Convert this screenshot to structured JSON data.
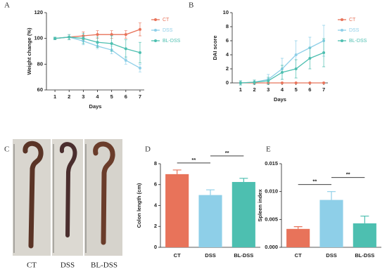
{
  "chart_data": [
    {
      "type": "line",
      "panel": "A",
      "xlabel": "Days",
      "ylabel": "Weight change (%)",
      "x": [
        1,
        2,
        3,
        4,
        5,
        6,
        7
      ],
      "xlim": [
        0.4,
        7.3
      ],
      "xticks": [
        1,
        2,
        3,
        4,
        5,
        6,
        7
      ],
      "ylim": [
        60,
        120
      ],
      "yticks": [
        60,
        80,
        100,
        120
      ],
      "series": [
        {
          "name": "CT",
          "color": "#e8735a",
          "values": [
            100,
            101,
            102,
            103,
            103,
            103,
            107
          ],
          "errors": [
            1,
            2,
            3,
            3,
            3,
            3,
            5
          ]
        },
        {
          "name": "DSS",
          "color": "#8ecfe8",
          "values": [
            100,
            101,
            98,
            94,
            91,
            83,
            77
          ],
          "errors": [
            1,
            2,
            3,
            2,
            3,
            3,
            3
          ]
        },
        {
          "name": "BL-DSS",
          "color": "#4dbfb0",
          "values": [
            100,
            101,
            100,
            97,
            96,
            92,
            89
          ],
          "errors": [
            1,
            2,
            4,
            4,
            6,
            7,
            8
          ]
        }
      ]
    },
    {
      "type": "line",
      "panel": "B",
      "xlabel": "Days",
      "ylabel": "DAI score",
      "x": [
        1,
        2,
        3,
        4,
        5,
        6,
        7
      ],
      "xlim": [
        0.4,
        7.3
      ],
      "xticks": [
        1,
        2,
        3,
        4,
        5,
        6,
        7
      ],
      "ylim": [
        0,
        10
      ],
      "yticks": [
        0,
        2,
        4,
        6,
        8,
        10
      ],
      "series": [
        {
          "name": "CT",
          "color": "#e8735a",
          "values": [
            0,
            0,
            0,
            0,
            0,
            0,
            0
          ],
          "errors": [
            0,
            0,
            0,
            0,
            0,
            0,
            0
          ]
        },
        {
          "name": "DSS",
          "color": "#8ecfe8",
          "values": [
            0,
            0.1,
            0.5,
            2,
            4,
            5,
            6
          ],
          "errors": [
            0.3,
            0.3,
            0.7,
            1.5,
            2,
            1.5,
            2.2
          ]
        },
        {
          "name": "BL-DSS",
          "color": "#4dbfb0",
          "values": [
            0,
            0.1,
            0.3,
            1.5,
            2,
            3.5,
            4.3
          ],
          "errors": [
            0.3,
            0.3,
            0.5,
            1,
            1.3,
            1.5,
            2
          ]
        }
      ]
    },
    {
      "type": "bar",
      "panel": "D",
      "ylabel": "Colon length (cm)",
      "categories": [
        "CT",
        "DSS",
        "BL-DSS"
      ],
      "values": [
        7.0,
        5.0,
        6.25
      ],
      "errors": [
        0.4,
        0.5,
        0.35
      ],
      "colors": [
        "#e8735a",
        "#8ecfe8",
        "#4dbfb0"
      ],
      "ylim": [
        0,
        8
      ],
      "yticks": [
        0,
        2,
        4,
        6,
        8
      ],
      "annotations": [
        {
          "text": "**",
          "pair": [
            0,
            1
          ]
        },
        {
          "text": "**",
          "pair": [
            1,
            2
          ]
        }
      ]
    },
    {
      "type": "bar",
      "panel": "E",
      "ylabel": "Spleen index",
      "categories": [
        "CT",
        "DSS",
        "BL-DSS"
      ],
      "values": [
        0.0033,
        0.0085,
        0.0043
      ],
      "errors": [
        0.0004,
        0.0015,
        0.0013
      ],
      "colors": [
        "#e8735a",
        "#8ecfe8",
        "#4dbfb0"
      ],
      "ylim": [
        0,
        0.015
      ],
      "yticks": [
        {
          "value": 0,
          "label": "0.000"
        },
        {
          "value": 0.005,
          "label": "0.005"
        },
        {
          "value": 0.01,
          "label": "0.010"
        },
        {
          "value": 0.015,
          "label": "0.015"
        }
      ],
      "annotations": [
        {
          "text": "**",
          "pair": [
            0,
            1
          ]
        },
        {
          "text": "**",
          "pair": [
            1,
            2
          ]
        }
      ]
    }
  ],
  "photo": {
    "panel": "C",
    "captions": [
      "CT",
      "DSS",
      "BL-DSS"
    ]
  }
}
